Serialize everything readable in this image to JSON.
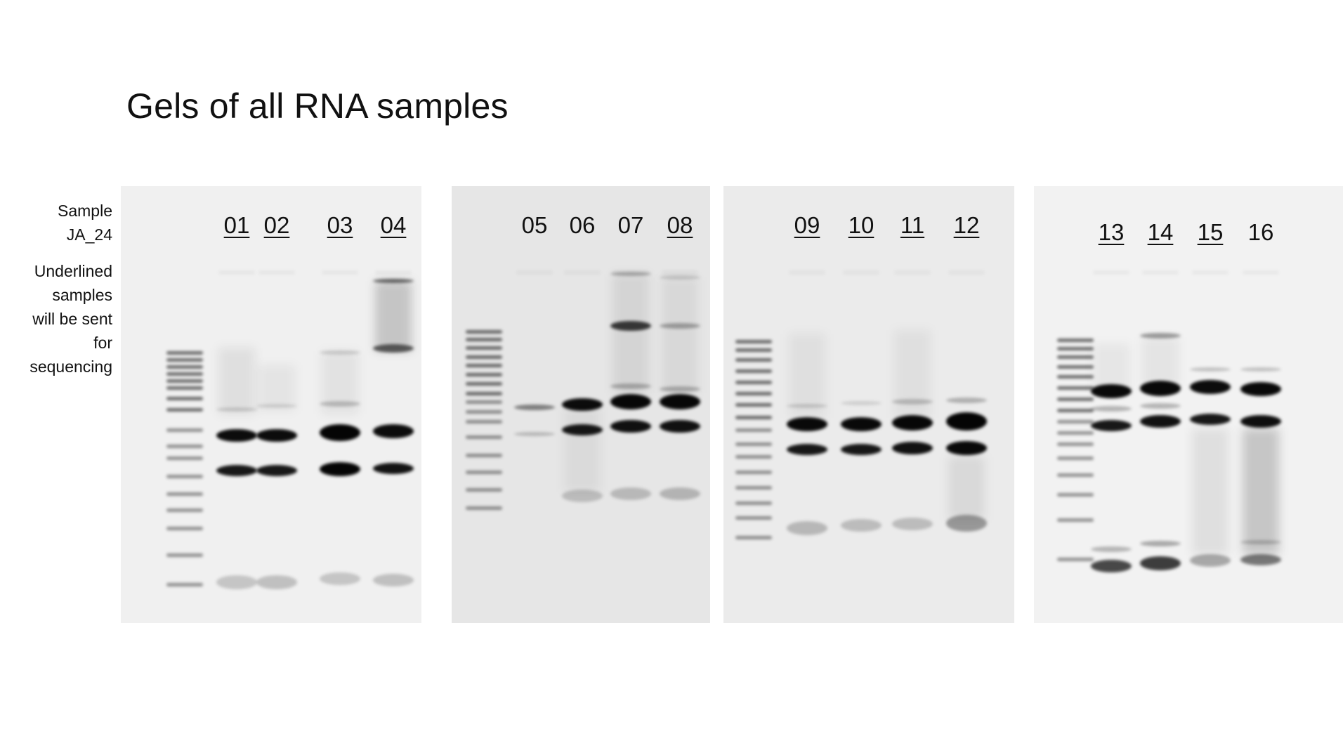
{
  "title": "Gels of all RNA samples",
  "legend": {
    "sample_label": "Sample",
    "sample_prefix": "JA_24",
    "note_lines": [
      "Underlined",
      "samples",
      "will be sent",
      "for",
      "sequencing"
    ]
  },
  "gels": [
    {
      "background": "#f0f0f0",
      "lanes": [
        {
          "label": "01",
          "underlined": true
        },
        {
          "label": "02",
          "underlined": true
        },
        {
          "label": "03",
          "underlined": true
        },
        {
          "label": "04",
          "underlined": true
        }
      ]
    },
    {
      "background": "#e6e6e6",
      "lanes": [
        {
          "label": "05",
          "underlined": false
        },
        {
          "label": "06",
          "underlined": false
        },
        {
          "label": "07",
          "underlined": false
        },
        {
          "label": "08",
          "underlined": true
        }
      ]
    },
    {
      "background": "#ebebeb",
      "lanes": [
        {
          "label": "09",
          "underlined": true
        },
        {
          "label": "10",
          "underlined": true
        },
        {
          "label": "11",
          "underlined": true
        },
        {
          "label": "12",
          "underlined": true
        }
      ]
    },
    {
      "background": "#f2f2f2",
      "lanes": [
        {
          "label": "13",
          "underlined": true
        },
        {
          "label": "14",
          "underlined": true
        },
        {
          "label": "15",
          "underlined": true
        },
        {
          "label": "16",
          "underlined": false
        }
      ]
    }
  ]
}
